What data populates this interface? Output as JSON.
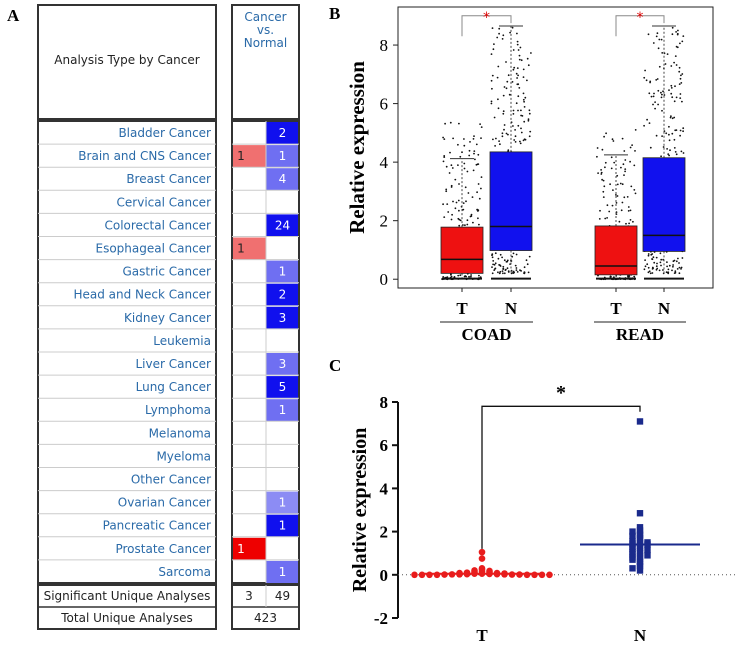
{
  "panelA": {
    "letter": "A",
    "header_left": "Analysis Type by Cancer",
    "header_right": [
      "Cancer",
      "vs.",
      "Normal"
    ],
    "colors": {
      "red_strong": "#ee0000",
      "red_light": "#f07070",
      "blue_strong": "#1010ee",
      "blue_medium": "#3c3cf0",
      "blue_light": "#6f6ff2",
      "blue_pale": "#8c8cf4",
      "label": "#2a6aa8"
    },
    "rows": [
      {
        "name": "Bladder Cancer",
        "over": "",
        "under": "2",
        "over_level": 0,
        "under_level": 3
      },
      {
        "name": "Brain and CNS Cancer",
        "over": "1",
        "under": "1",
        "over_level": 1,
        "under_level": 2
      },
      {
        "name": "Breast Cancer",
        "over": "",
        "under": "4",
        "over_level": 0,
        "under_level": 2
      },
      {
        "name": "Cervical Cancer",
        "over": "",
        "under": "",
        "over_level": 0,
        "under_level": 0
      },
      {
        "name": "Colorectal Cancer",
        "over": "",
        "under": "24",
        "over_level": 0,
        "under_level": 3
      },
      {
        "name": "Esophageal Cancer",
        "over": "1",
        "under": "",
        "over_level": 1,
        "under_level": 0
      },
      {
        "name": "Gastric Cancer",
        "over": "",
        "under": "1",
        "over_level": 0,
        "under_level": 2
      },
      {
        "name": "Head and Neck Cancer",
        "over": "",
        "under": "2",
        "over_level": 0,
        "under_level": 3
      },
      {
        "name": "Kidney Cancer",
        "over": "",
        "under": "3",
        "over_level": 0,
        "under_level": 3
      },
      {
        "name": "Leukemia",
        "over": "",
        "under": "",
        "over_level": 0,
        "under_level": 0
      },
      {
        "name": "Liver Cancer",
        "over": "",
        "under": "3",
        "over_level": 0,
        "under_level": 2
      },
      {
        "name": "Lung Cancer",
        "over": "",
        "under": "5",
        "over_level": 0,
        "under_level": 3
      },
      {
        "name": "Lymphoma",
        "over": "",
        "under": "1",
        "over_level": 0,
        "under_level": 2
      },
      {
        "name": "Melanoma",
        "over": "",
        "under": "",
        "over_level": 0,
        "under_level": 0
      },
      {
        "name": "Myeloma",
        "over": "",
        "under": "",
        "over_level": 0,
        "under_level": 0
      },
      {
        "name": "Other Cancer",
        "over": "",
        "under": "",
        "over_level": 0,
        "under_level": 0
      },
      {
        "name": "Ovarian Cancer",
        "over": "",
        "under": "1",
        "over_level": 0,
        "under_level": 1
      },
      {
        "name": "Pancreatic Cancer",
        "over": "",
        "under": "1",
        "over_level": 0,
        "under_level": 3
      },
      {
        "name": "Prostate Cancer",
        "over": "1",
        "under": "",
        "over_level": 2,
        "under_level": 0
      },
      {
        "name": "Sarcoma",
        "over": "",
        "under": "1",
        "over_level": 0,
        "under_level": 2
      }
    ],
    "significant": {
      "label": "Significant Unique Analyses",
      "over": "3",
      "under": "49"
    },
    "total": {
      "label": "Total Unique Analyses",
      "value": "423"
    }
  },
  "panelB": {
    "letter": "B",
    "chart_data": {
      "type": "box",
      "ylabel": "Relative expression",
      "ylim": [
        -0.3,
        9.3
      ],
      "yticks": [
        0,
        2,
        4,
        6,
        8
      ],
      "groups": [
        {
          "name": "COAD",
          "boxes": [
            {
              "label": "T",
              "color": "#ee1111",
              "min": 0.05,
              "q1": 0.2,
              "median": 0.68,
              "q3": 1.78,
              "max": 4.12,
              "outlier_max": 5.4
            },
            {
              "label": "N",
              "color": "#1111ee",
              "min": 0.2,
              "q1": 0.98,
              "median": 1.8,
              "q3": 4.35,
              "max": 8.65
            }
          ],
          "significance": "*"
        },
        {
          "name": "READ",
          "boxes": [
            {
              "label": "T",
              "color": "#ee1111",
              "min": 0.05,
              "q1": 0.15,
              "median": 0.45,
              "q3": 1.82,
              "max": 4.25,
              "outlier_max": 5.1
            },
            {
              "label": "N",
              "color": "#1111ee",
              "min": 0.2,
              "q1": 0.95,
              "median": 1.5,
              "q3": 4.15,
              "max": 8.65
            }
          ],
          "significance": "*"
        }
      ]
    }
  },
  "panelC": {
    "letter": "C",
    "chart_data": {
      "type": "scatter",
      "ylabel": "Relative expression",
      "ylim": [
        -2,
        8
      ],
      "yticks": [
        -2,
        0,
        2,
        4,
        6,
        8
      ],
      "significance": "*",
      "series": [
        {
          "name": "T",
          "color": "#e81c1c",
          "marker": "circle",
          "mean": 0.05,
          "values": [
            1.05,
            0.75,
            0.3,
            0.25,
            0.2,
            0.18,
            0.15,
            0.12,
            0.1,
            0.1,
            0.08,
            0.08,
            0.06,
            0.05,
            0.05,
            0.04,
            0.03,
            0.03,
            0.02,
            0.02,
            0.02,
            0.01,
            0.01,
            0.01,
            0.0,
            0.0,
            0.0,
            0.0,
            0.0,
            0.0,
            0.0,
            0.0
          ]
        },
        {
          "name": "N",
          "color": "#1a2a8c",
          "marker": "square",
          "mean": 1.4,
          "values": [
            7.1,
            2.85,
            2.2,
            2.05,
            2.0,
            1.9,
            1.85,
            1.8,
            1.7,
            1.6,
            1.55,
            1.5,
            1.45,
            1.45,
            1.4,
            1.35,
            1.3,
            1.25,
            1.2,
            1.15,
            1.1,
            1.05,
            1.0,
            0.95,
            0.9,
            0.85,
            0.8,
            0.75,
            0.7,
            0.6,
            0.5,
            0.4,
            0.3,
            0.2
          ]
        }
      ]
    }
  }
}
